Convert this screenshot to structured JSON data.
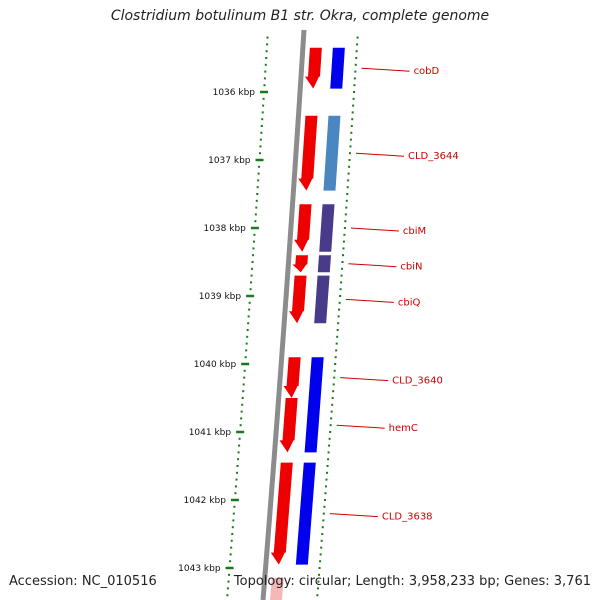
{
  "title": "Clostridium botulinum B1 str. Okra, complete genome",
  "footer": {
    "accession": "Accession: NC_010516",
    "topology": "Topology: circular; Length: 3,958,233 bp; Genes: 3,761"
  },
  "colors": {
    "backbone": "#8c8c8c",
    "ticks": "#1a7a1a",
    "tick_text": "#111111",
    "label": "#cc0000",
    "forward_cds": "#ee0000",
    "reverse_cds": "#0000ee",
    "cds_light_blue": "#4a86c0",
    "cds_purple": "#4a3a8a"
  },
  "ticks": [
    {
      "label": "1036 kbp",
      "kbp": 1036
    },
    {
      "label": "1037 kbp",
      "kbp": 1037
    },
    {
      "label": "1038 kbp",
      "kbp": 1038
    },
    {
      "label": "1039 kbp",
      "kbp": 1039
    },
    {
      "label": "1040 kbp",
      "kbp": 1040
    },
    {
      "label": "1041 kbp",
      "kbp": 1041
    },
    {
      "label": "1042 kbp",
      "kbp": 1042
    },
    {
      "label": "1043 kbp",
      "kbp": 1043
    }
  ],
  "genes": [
    {
      "name": "cobD",
      "start_kbp": 1035.35,
      "end_kbp": 1035.95
    },
    {
      "name": "CLD_3644",
      "start_kbp": 1036.35,
      "end_kbp": 1037.45
    },
    {
      "name": "cbiM",
      "start_kbp": 1037.65,
      "end_kbp": 1038.35
    },
    {
      "name": "cbiN",
      "start_kbp": 1038.4,
      "end_kbp": 1038.65
    },
    {
      "name": "cbiQ",
      "start_kbp": 1038.7,
      "end_kbp": 1039.4
    },
    {
      "name": "CLD_3640",
      "start_kbp": 1039.9,
      "end_kbp": 1040.5
    },
    {
      "name": "hemC",
      "start_kbp": 1040.5,
      "end_kbp": 1041.3
    },
    {
      "name": "CLD_3638",
      "start_kbp": 1041.45,
      "end_kbp": 1042.95
    }
  ]
}
